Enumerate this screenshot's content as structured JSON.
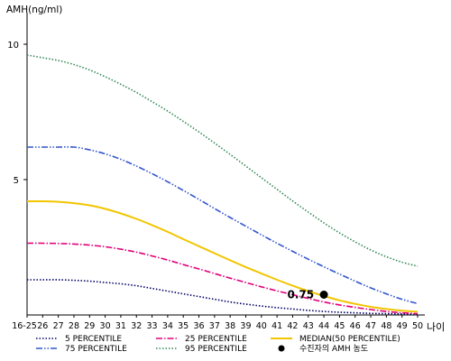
{
  "chart_data": {
    "type": "line",
    "ylabel": "AMH(ng/ml)",
    "xlabel": "나이",
    "x_categories": [
      "16-25",
      "26",
      "27",
      "28",
      "29",
      "30",
      "31",
      "32",
      "33",
      "34",
      "35",
      "36",
      "37",
      "38",
      "39",
      "40",
      "41",
      "42",
      "43",
      "44",
      "45",
      "46",
      "47",
      "48",
      "49",
      "50"
    ],
    "ylim": [
      0,
      11
    ],
    "yticks": [
      5,
      10
    ],
    "grid": false,
    "legend_position": "bottom",
    "series": [
      {
        "name": "5 PERCENTILE",
        "color": "#000066",
        "dash": "1.5,2",
        "values": [
          1.3,
          1.3,
          1.3,
          1.28,
          1.25,
          1.2,
          1.15,
          1.08,
          0.98,
          0.88,
          0.78,
          0.68,
          0.58,
          0.48,
          0.4,
          0.33,
          0.27,
          0.22,
          0.17,
          0.13,
          0.1,
          0.08,
          0.06,
          0.05,
          0.04,
          0.03
        ]
      },
      {
        "name": "25 PERCENTILE",
        "color": "#e0007a",
        "dash": "7,2,1.5,2",
        "values": [
          2.65,
          2.65,
          2.64,
          2.62,
          2.58,
          2.52,
          2.43,
          2.32,
          2.18,
          2.03,
          1.86,
          1.7,
          1.53,
          1.36,
          1.2,
          1.04,
          0.89,
          0.75,
          0.61,
          0.48,
          0.37,
          0.28,
          0.2,
          0.13,
          0.08,
          0.05
        ]
      },
      {
        "name": "MEDIAN(50 PERCENTILE)",
        "color": "#f2c500",
        "dash": "",
        "values": [
          4.2,
          4.2,
          4.18,
          4.13,
          4.05,
          3.92,
          3.75,
          3.55,
          3.32,
          3.07,
          2.8,
          2.54,
          2.28,
          2.02,
          1.77,
          1.53,
          1.3,
          1.08,
          0.88,
          0.7,
          0.54,
          0.41,
          0.3,
          0.22,
          0.16,
          0.12
        ]
      },
      {
        "name": "75 PERCENTILE",
        "color": "#3355cc",
        "dash": "7,2,1.5,2,1.5,2",
        "values": [
          6.2,
          6.2,
          6.2,
          6.2,
          6.1,
          5.95,
          5.75,
          5.5,
          5.22,
          4.92,
          4.6,
          4.27,
          3.93,
          3.6,
          3.28,
          2.96,
          2.65,
          2.35,
          2.06,
          1.78,
          1.51,
          1.25,
          1.0,
          0.78,
          0.58,
          0.42
        ]
      },
      {
        "name": "95 PERCENTILE",
        "color": "#338855",
        "dash": "1.5,2",
        "values": [
          9.6,
          9.5,
          9.4,
          9.25,
          9.05,
          8.8,
          8.52,
          8.22,
          7.88,
          7.53,
          7.15,
          6.76,
          6.35,
          5.93,
          5.5,
          5.07,
          4.64,
          4.21,
          3.8,
          3.4,
          3.03,
          2.7,
          2.4,
          2.15,
          1.95,
          1.8
        ]
      }
    ],
    "marker": {
      "name": "수진자의 AMH 농도",
      "x": "44",
      "y": 0.75,
      "label": "0.75"
    }
  }
}
